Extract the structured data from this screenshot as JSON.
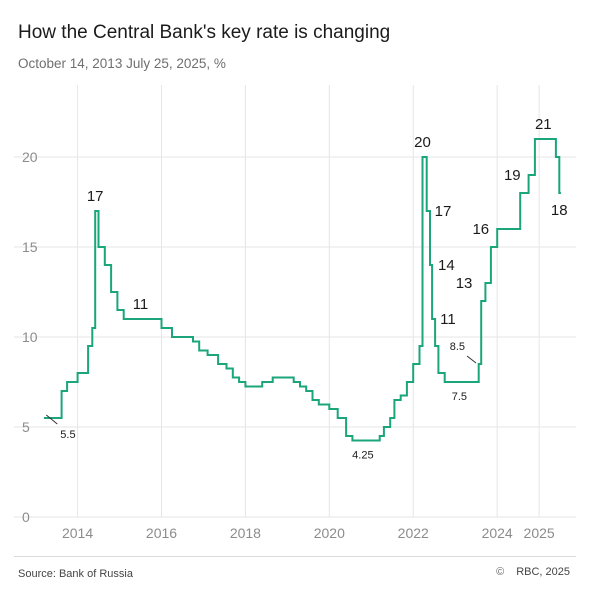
{
  "header": {
    "title": "How the Central Bank's key rate is changing",
    "subtitle": "October 14, 2013 July 25, 2025, %"
  },
  "footer": {
    "source": "Source: Bank of Russia",
    "copyright_symbol": "©",
    "copyright_text": "RBC, 2025"
  },
  "colors": {
    "line": "#1aa67a",
    "grid": "#e6e6e6",
    "tick": "#8c8c8c",
    "label": "#1b1b1b"
  },
  "chart_data": {
    "type": "line",
    "title": "How the Central Bank's key rate is changing",
    "xlim": [
      2013.2,
      2025.45
    ],
    "ylim": [
      0,
      24
    ],
    "grid": true,
    "yticks": [
      0,
      5,
      10,
      15,
      20
    ],
    "xticks": [
      {
        "value": 2014,
        "label": "2014"
      },
      {
        "value": 2016,
        "label": "2016"
      },
      {
        "value": 2018,
        "label": "2018"
      },
      {
        "value": 2020,
        "label": "2020"
      },
      {
        "value": 2022,
        "label": "2022"
      },
      {
        "value": 2024,
        "label": "2024"
      },
      {
        "value": 2025,
        "label": "2025"
      }
    ],
    "series": [
      {
        "step": true,
        "points": [
          [
            2013.2,
            5.5
          ],
          [
            2013.5,
            5.5
          ],
          [
            2013.62,
            7.0
          ],
          [
            2013.75,
            7.5
          ],
          [
            2014.0,
            8.0
          ],
          [
            2014.25,
            9.5
          ],
          [
            2014.35,
            10.5
          ],
          [
            2014.42,
            17.0
          ],
          [
            2014.5,
            15.0
          ],
          [
            2014.65,
            14.0
          ],
          [
            2014.8,
            12.5
          ],
          [
            2014.95,
            11.5
          ],
          [
            2015.1,
            11.0
          ],
          [
            2015.9,
            11.0
          ],
          [
            2016.0,
            10.5
          ],
          [
            2016.25,
            10.0
          ],
          [
            2016.75,
            9.75
          ],
          [
            2016.9,
            9.25
          ],
          [
            2017.1,
            9.0
          ],
          [
            2017.35,
            8.5
          ],
          [
            2017.55,
            8.25
          ],
          [
            2017.7,
            7.75
          ],
          [
            2017.85,
            7.5
          ],
          [
            2018.0,
            7.25
          ],
          [
            2018.4,
            7.5
          ],
          [
            2018.65,
            7.75
          ],
          [
            2019.15,
            7.5
          ],
          [
            2019.3,
            7.25
          ],
          [
            2019.45,
            7.0
          ],
          [
            2019.6,
            6.5
          ],
          [
            2019.75,
            6.25
          ],
          [
            2020.0,
            6.0
          ],
          [
            2020.2,
            5.5
          ],
          [
            2020.4,
            4.5
          ],
          [
            2020.55,
            4.25
          ],
          [
            2021.2,
            4.5
          ],
          [
            2021.3,
            5.0
          ],
          [
            2021.45,
            5.5
          ],
          [
            2021.55,
            6.5
          ],
          [
            2021.7,
            6.75
          ],
          [
            2021.85,
            7.5
          ],
          [
            2022.0,
            8.5
          ],
          [
            2022.15,
            9.5
          ],
          [
            2022.22,
            20.0
          ],
          [
            2022.32,
            17.0
          ],
          [
            2022.4,
            14.0
          ],
          [
            2022.45,
            11.0
          ],
          [
            2022.52,
            9.5
          ],
          [
            2022.6,
            8.0
          ],
          [
            2022.75,
            7.5
          ],
          [
            2023.56,
            8.5
          ],
          [
            2023.62,
            12.0
          ],
          [
            2023.72,
            13.0
          ],
          [
            2023.85,
            15.0
          ],
          [
            2024.0,
            16.0
          ],
          [
            2024.55,
            18.0
          ],
          [
            2024.75,
            19.0
          ],
          [
            2024.9,
            21.0
          ],
          [
            2025.4,
            20.0
          ],
          [
            2025.48,
            18.0
          ],
          [
            2025.52,
            18.0
          ]
        ]
      }
    ],
    "labels": [
      {
        "x": 2014.42,
        "y": 17.0,
        "text": "17",
        "size": "big",
        "pos": "above"
      },
      {
        "x": 2015.5,
        "y": 11.0,
        "text": "11",
        "size": "big",
        "pos": "above"
      },
      {
        "x": 2022.22,
        "y": 20.0,
        "text": "20",
        "size": "big",
        "pos": "above"
      },
      {
        "x": 2022.32,
        "y": 17.0,
        "text": "17",
        "size": "big",
        "pos": "right"
      },
      {
        "x": 2022.4,
        "y": 14.0,
        "text": "14",
        "size": "big",
        "pos": "right"
      },
      {
        "x": 2022.45,
        "y": 11.0,
        "text": "11",
        "size": "big",
        "pos": "right"
      },
      {
        "x": 2023.6,
        "y": 13.0,
        "text": "13",
        "size": "big",
        "pos": "left"
      },
      {
        "x": 2024.0,
        "y": 16.0,
        "text": "16",
        "size": "big",
        "pos": "left"
      },
      {
        "x": 2024.75,
        "y": 19.0,
        "text": "19",
        "size": "big",
        "pos": "left"
      },
      {
        "x": 2025.1,
        "y": 21.0,
        "text": "21",
        "size": "big",
        "pos": "above"
      },
      {
        "x": 2025.48,
        "y": 18.0,
        "text": "18",
        "size": "big",
        "pos": "below"
      },
      {
        "x": 2013.35,
        "y": 5.5,
        "text": "5.5",
        "size": "small",
        "pos": "below-right"
      },
      {
        "x": 2020.8,
        "y": 4.25,
        "text": "4.25",
        "size": "small",
        "pos": "below"
      },
      {
        "x": 2023.1,
        "y": 7.5,
        "text": "7.5",
        "size": "small",
        "pos": "below"
      },
      {
        "x": 2023.52,
        "y": 8.5,
        "text": "8.5",
        "size": "small",
        "pos": "above-left"
      }
    ]
  }
}
